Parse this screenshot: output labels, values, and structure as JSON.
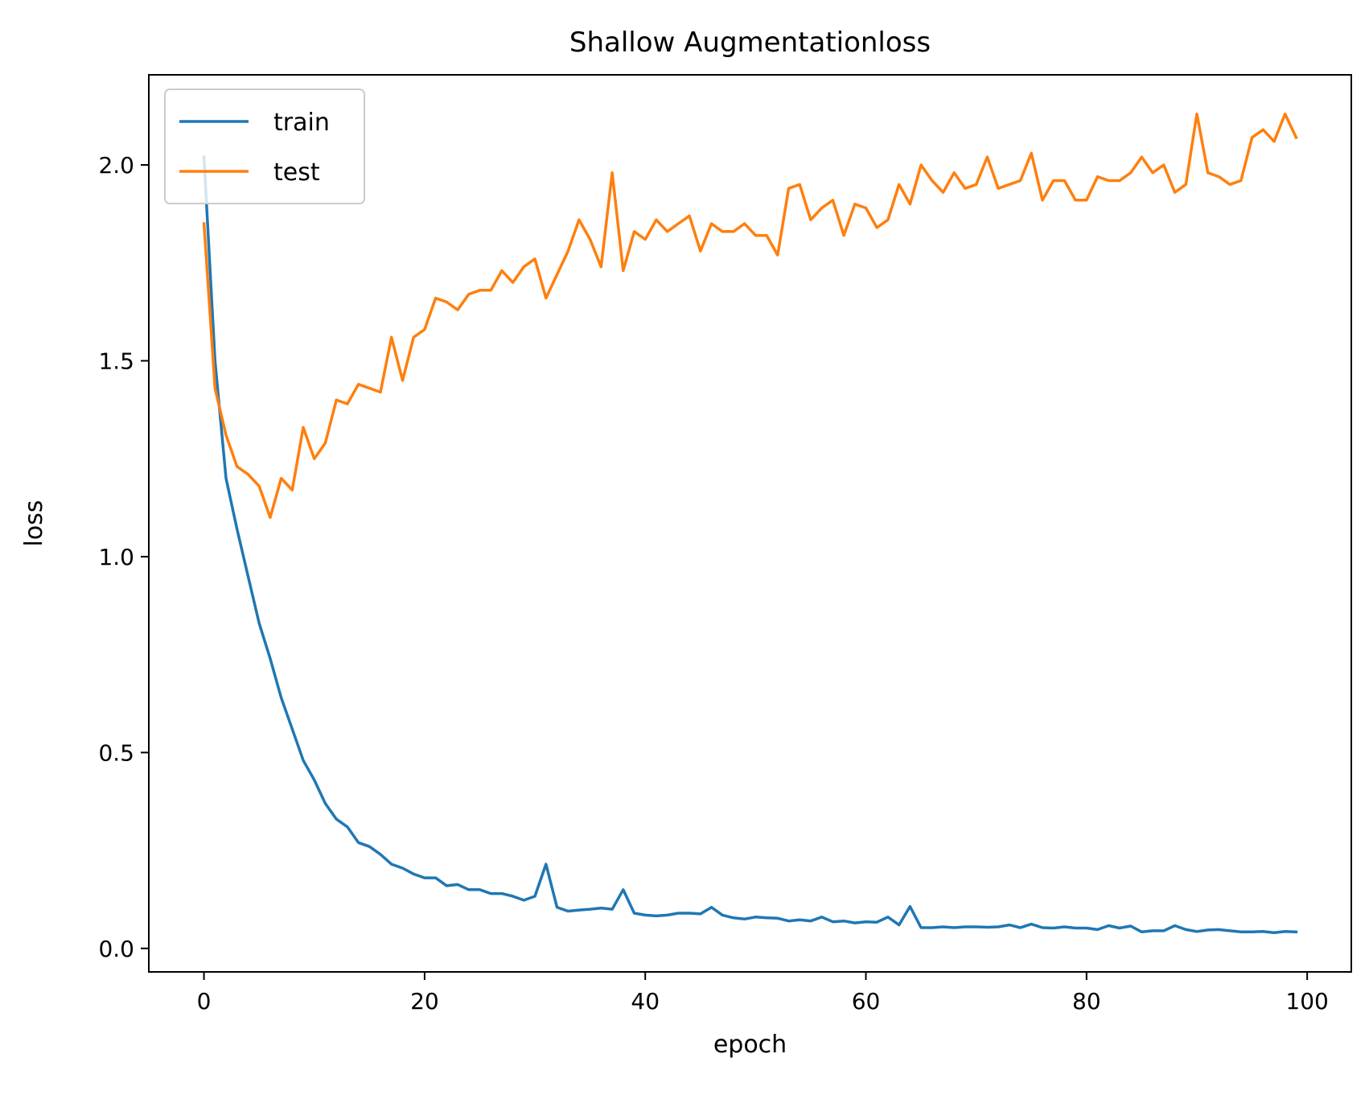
{
  "chart_data": {
    "type": "line",
    "title": "Shallow Augmentationloss",
    "xlabel": "epoch",
    "ylabel": "loss",
    "xlim": [
      -5,
      104
    ],
    "ylim": [
      -0.06,
      2.23
    ],
    "xticks": [
      0,
      20,
      40,
      60,
      80,
      100
    ],
    "yticks": [
      0.0,
      0.5,
      1.0,
      1.5,
      2.0
    ],
    "xtick_labels": [
      "0",
      "20",
      "40",
      "60",
      "80",
      "100"
    ],
    "ytick_labels": [
      "0.0",
      "0.5",
      "1.0",
      "1.5",
      "2.0"
    ],
    "grid": false,
    "legend_position": "top-left",
    "x": [
      0,
      1,
      2,
      3,
      4,
      5,
      6,
      7,
      8,
      9,
      10,
      11,
      12,
      13,
      14,
      15,
      16,
      17,
      18,
      19,
      20,
      21,
      22,
      23,
      24,
      25,
      26,
      27,
      28,
      29,
      30,
      31,
      32,
      33,
      34,
      35,
      36,
      37,
      38,
      39,
      40,
      41,
      42,
      43,
      44,
      45,
      46,
      47,
      48,
      49,
      50,
      51,
      52,
      53,
      54,
      55,
      56,
      57,
      58,
      59,
      60,
      61,
      62,
      63,
      64,
      65,
      66,
      67,
      68,
      69,
      70,
      71,
      72,
      73,
      74,
      75,
      76,
      77,
      78,
      79,
      80,
      81,
      82,
      83,
      84,
      85,
      86,
      87,
      88,
      89,
      90,
      91,
      92,
      93,
      94,
      95,
      96,
      97,
      98,
      99
    ],
    "series": [
      {
        "name": "train",
        "color": "#1f77b4",
        "values": [
          2.02,
          1.5,
          1.2,
          1.07,
          0.95,
          0.83,
          0.74,
          0.64,
          0.56,
          0.48,
          0.43,
          0.37,
          0.33,
          0.31,
          0.27,
          0.26,
          0.24,
          0.215,
          0.205,
          0.19,
          0.18,
          0.18,
          0.16,
          0.163,
          0.15,
          0.15,
          0.14,
          0.14,
          0.133,
          0.123,
          0.133,
          0.215,
          0.105,
          0.095,
          0.098,
          0.1,
          0.103,
          0.1,
          0.15,
          0.09,
          0.085,
          0.083,
          0.085,
          0.09,
          0.09,
          0.088,
          0.105,
          0.085,
          0.078,
          0.075,
          0.08,
          0.078,
          0.077,
          0.07,
          0.073,
          0.07,
          0.08,
          0.068,
          0.07,
          0.065,
          0.068,
          0.067,
          0.08,
          0.06,
          0.107,
          0.053,
          0.053,
          0.055,
          0.053,
          0.055,
          0.055,
          0.054,
          0.055,
          0.06,
          0.053,
          0.062,
          0.053,
          0.052,
          0.055,
          0.052,
          0.052,
          0.048,
          0.058,
          0.052,
          0.057,
          0.042,
          0.045,
          0.045,
          0.058,
          0.048,
          0.043,
          0.047,
          0.048,
          0.045,
          0.042,
          0.042,
          0.043,
          0.04,
          0.043,
          0.042
        ]
      },
      {
        "name": "test",
        "color": "#ff7f0e",
        "values": [
          1.85,
          1.43,
          1.31,
          1.23,
          1.21,
          1.18,
          1.1,
          1.2,
          1.17,
          1.33,
          1.25,
          1.29,
          1.4,
          1.39,
          1.44,
          1.43,
          1.42,
          1.56,
          1.45,
          1.56,
          1.58,
          1.66,
          1.65,
          1.63,
          1.67,
          1.68,
          1.68,
          1.73,
          1.7,
          1.74,
          1.76,
          1.66,
          1.72,
          1.78,
          1.86,
          1.81,
          1.74,
          1.98,
          1.73,
          1.83,
          1.81,
          1.86,
          1.83,
          1.85,
          1.87,
          1.78,
          1.85,
          1.83,
          1.83,
          1.85,
          1.82,
          1.82,
          1.77,
          1.94,
          1.95,
          1.86,
          1.89,
          1.91,
          1.82,
          1.9,
          1.89,
          1.84,
          1.86,
          1.95,
          1.9,
          2.0,
          1.96,
          1.93,
          1.98,
          1.94,
          1.95,
          2.02,
          1.94,
          1.95,
          1.96,
          2.03,
          1.91,
          1.96,
          1.96,
          1.91,
          1.91,
          1.97,
          1.96,
          1.96,
          1.98,
          2.02,
          1.98,
          2.0,
          1.93,
          1.95,
          2.13,
          1.98,
          1.97,
          1.95,
          1.96,
          2.07,
          2.09,
          2.06,
          2.13,
          2.07
        ]
      }
    ]
  }
}
